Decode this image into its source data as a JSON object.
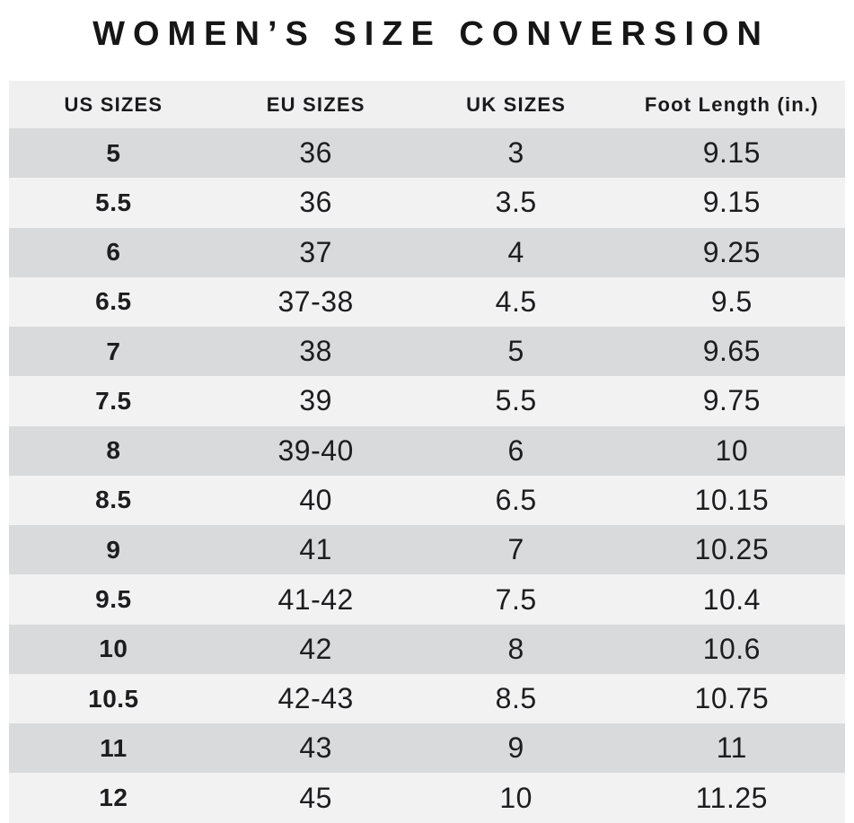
{
  "page": {
    "title": "WOMEN’S SIZE CONVERSION"
  },
  "colors": {
    "row_dark": "#d9dadb",
    "row_light": "#f2f2f3",
    "header_bg": "#f0f0f1",
    "text": "#1d1d1f",
    "title": "#161616",
    "page_background": "#ffffff"
  },
  "chart_data": {
    "type": "table",
    "title": "WOMEN’S SIZE CONVERSION",
    "columns": [
      "US SIZES",
      "EU SIZES",
      "UK SIZES",
      "Foot Length (in.)"
    ],
    "rows": [
      [
        "5",
        "36",
        "3",
        "9.15"
      ],
      [
        "5.5",
        "36",
        "3.5",
        "9.15"
      ],
      [
        "6",
        "37",
        "4",
        "9.25"
      ],
      [
        "6.5",
        "37-38",
        "4.5",
        "9.5"
      ],
      [
        "7",
        "38",
        "5",
        "9.65"
      ],
      [
        "7.5",
        "39",
        "5.5",
        "9.75"
      ],
      [
        "8",
        "39-40",
        "6",
        "10"
      ],
      [
        "8.5",
        "40",
        "6.5",
        "10.15"
      ],
      [
        "9",
        "41",
        "7",
        "10.25"
      ],
      [
        "9.5",
        "41-42",
        "7.5",
        "10.4"
      ],
      [
        "10",
        "42",
        "8",
        "10.6"
      ],
      [
        "10.5",
        "42-43",
        "8.5",
        "10.75"
      ],
      [
        "11",
        "43",
        "9",
        "11"
      ],
      [
        "12",
        "45",
        "10",
        "11.25"
      ]
    ],
    "layout": {
      "row_striping": "first data row dark, alternating",
      "legend": "none",
      "grid": "off"
    }
  }
}
